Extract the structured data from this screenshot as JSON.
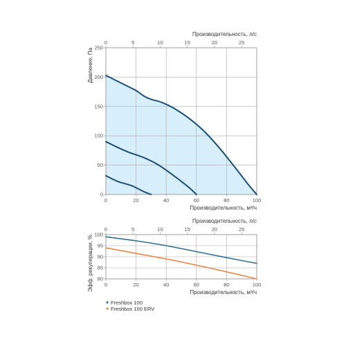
{
  "colors": {
    "fill": "#d6effa",
    "curve": "#1a4e7a",
    "frame": "#888888",
    "grid": "#aaaaaa",
    "series_a": "#2e6f96",
    "series_b": "#e8884a"
  },
  "chart_data": [
    {
      "type": "line",
      "xlabel": "Производительность, м³/ч",
      "x2label": "Производительность, л/с",
      "ylabel": "Давление, Па",
      "xlim": [
        0,
        100
      ],
      "x2lim": [
        0,
        27.78
      ],
      "ylim": [
        0,
        250
      ],
      "xticks": [
        0,
        20,
        40,
        60,
        80,
        100
      ],
      "x2ticks": [
        0,
        5,
        10,
        15,
        20,
        25
      ],
      "yticks": [
        0,
        50,
        100,
        150,
        200,
        250
      ],
      "grid": true,
      "filled_region": "under max-speed curve",
      "series": [
        {
          "points": [
            [
              0,
              203
            ],
            [
              10,
              190
            ],
            [
              20,
              177
            ],
            [
              25,
              168
            ],
            [
              30,
              162
            ],
            [
              37,
              157
            ],
            [
              45,
              147
            ],
            [
              55,
              130
            ],
            [
              65,
              108
            ],
            [
              75,
              80
            ],
            [
              85,
              48
            ],
            [
              95,
              15
            ],
            [
              100,
              0
            ]
          ]
        },
        {
          "points": [
            [
              0,
              90
            ],
            [
              8,
              80
            ],
            [
              15,
              72
            ],
            [
              25,
              63
            ],
            [
              35,
              50
            ],
            [
              45,
              32
            ],
            [
              55,
              12
            ],
            [
              60,
              0
            ]
          ]
        },
        {
          "points": [
            [
              0,
              32
            ],
            [
              8,
              22
            ],
            [
              17,
              15
            ],
            [
              25,
              5
            ],
            [
              30,
              0
            ]
          ]
        }
      ]
    },
    {
      "type": "line",
      "xlabel": "Производительность, м³/ч",
      "x2label": "Производительность, л/с",
      "ylabel": "Эфф. рекуперации, %",
      "xlim": [
        0,
        100
      ],
      "x2lim": [
        0,
        27.78
      ],
      "ylim": [
        80,
        100
      ],
      "xticks": [
        0,
        20,
        40,
        60,
        80,
        100
      ],
      "x2ticks": [
        0,
        5,
        10,
        15,
        20,
        25
      ],
      "yticks": [
        80,
        85,
        90,
        95,
        100
      ],
      "grid": true,
      "legend": "bottom-left",
      "series": [
        {
          "name": "Freshbox 100",
          "color_key": "series_a",
          "points": [
            [
              0,
              99
            ],
            [
              20,
              97.2
            ],
            [
              40,
              95
            ],
            [
              60,
              92.3
            ],
            [
              80,
              89.6
            ],
            [
              100,
              87
            ]
          ]
        },
        {
          "name": "Freshbox 100 ERV",
          "color_key": "series_b",
          "points": [
            [
              0,
              94
            ],
            [
              20,
              91.5
            ],
            [
              40,
              89
            ],
            [
              60,
              86.2
            ],
            [
              80,
              83.2
            ],
            [
              100,
              80
            ]
          ]
        }
      ]
    }
  ]
}
